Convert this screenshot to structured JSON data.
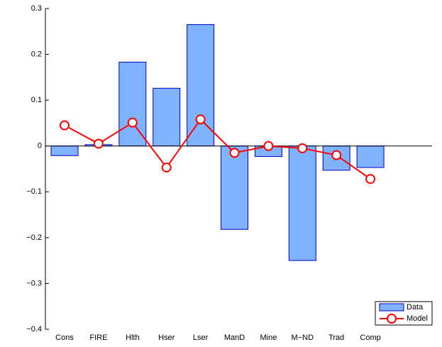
{
  "chart_data": {
    "type": "bar",
    "categories": [
      "Cons",
      "FIRE",
      "Hlth",
      "Hser",
      "Lser",
      "ManD",
      "Mine",
      "M−ND",
      "Trad",
      "Comp"
    ],
    "series": [
      {
        "name": "Data",
        "type": "bar",
        "color": "#80b3ff",
        "edgecolor": "#0000cc",
        "values": [
          -0.021,
          0.003,
          0.183,
          0.126,
          0.265,
          -0.182,
          -0.023,
          -0.25,
          -0.053,
          -0.047
        ]
      },
      {
        "name": "Model",
        "type": "line",
        "color": "#ff0000",
        "values": [
          0.045,
          0.005,
          0.051,
          -0.047,
          0.058,
          -0.015,
          0.0,
          -0.005,
          -0.02,
          -0.072
        ]
      }
    ],
    "ylim": [
      -0.4,
      0.3
    ],
    "yticks": [
      {
        "value": -0.4,
        "label": "−0.4"
      },
      {
        "value": -0.3,
        "label": "−0.3"
      },
      {
        "value": -0.2,
        "label": "−0.2"
      },
      {
        "value": -0.1,
        "label": "−0.1"
      },
      0,
      0.1,
      0.2,
      0.3
    ],
    "legend": "lower right"
  }
}
